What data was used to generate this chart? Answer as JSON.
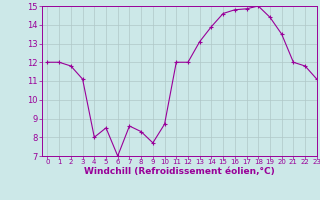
{
  "x": [
    0,
    1,
    2,
    3,
    4,
    5,
    6,
    7,
    8,
    9,
    10,
    11,
    12,
    13,
    14,
    15,
    16,
    17,
    18,
    19,
    20,
    21,
    22,
    23
  ],
  "y": [
    12,
    12,
    11.8,
    11.1,
    8.0,
    8.5,
    7.0,
    8.6,
    8.3,
    7.7,
    8.7,
    12.0,
    12.0,
    13.1,
    13.9,
    14.6,
    14.8,
    14.85,
    15.0,
    14.4,
    13.5,
    12.0,
    11.8,
    11.1
  ],
  "line_color": "#990099",
  "marker": "+",
  "markersize": 3,
  "linewidth": 0.8,
  "markeredgewidth": 0.8,
  "xlabel": "Windchill (Refroidissement éolien,°C)",
  "ylabel": "",
  "ylim": [
    7,
    15
  ],
  "xlim": [
    -0.5,
    23
  ],
  "yticks": [
    7,
    8,
    9,
    10,
    11,
    12,
    13,
    14,
    15
  ],
  "xticks": [
    0,
    1,
    2,
    3,
    4,
    5,
    6,
    7,
    8,
    9,
    10,
    11,
    12,
    13,
    14,
    15,
    16,
    17,
    18,
    19,
    20,
    21,
    22,
    23
  ],
  "bg_color": "#cce8e8",
  "grid_color": "#b0c8c8",
  "tick_color": "#990099",
  "label_color": "#990099",
  "spine_color": "#990099",
  "xlabel_fontsize": 6.5,
  "ytick_fontsize": 6,
  "xtick_fontsize": 5
}
